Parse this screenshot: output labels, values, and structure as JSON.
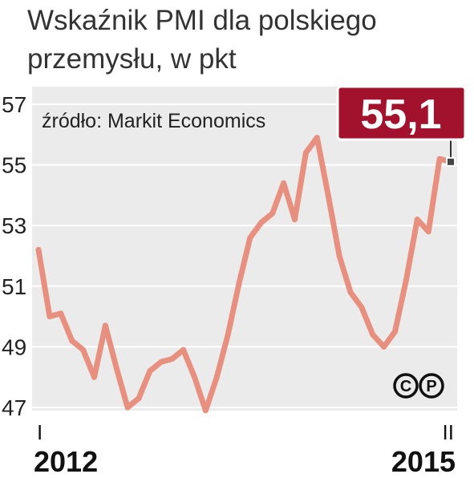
{
  "title": "Wskaźnik PMI dla polskiego przemysłu, w pkt",
  "source": "źródło: Markit Economics",
  "copyright": {
    "c": "C",
    "p": "P"
  },
  "colors": {
    "line": "#e8907f",
    "plot_bg": "#ebebeb",
    "callout": "#a3122d"
  },
  "callout": {
    "label": "55,1"
  },
  "chart_data": {
    "type": "line",
    "title": "Wskaźnik PMI dla polskiego przemysłu, w pkt",
    "ylim": [
      47,
      57
    ],
    "yticks": [
      47,
      49,
      51,
      53,
      55,
      57
    ],
    "grid": true,
    "x_labels": [
      {
        "index": 0,
        "month": "I",
        "year": "2012"
      },
      {
        "index": 37,
        "month": "II",
        "year": "2015"
      }
    ],
    "series": [
      {
        "values": [
          52.2,
          50.0,
          50.1,
          49.2,
          48.9,
          48.0,
          49.7,
          48.3,
          47.0,
          47.3,
          48.2,
          48.5,
          48.6,
          48.9,
          48.0,
          46.9,
          48.0,
          49.4,
          51.1,
          52.6,
          53.1,
          53.4,
          54.4,
          53.2,
          55.4,
          55.9,
          54.0,
          52.0,
          50.8,
          50.3,
          49.4,
          49.0,
          49.5,
          51.2,
          53.2,
          52.8,
          55.2,
          55.1
        ]
      }
    ]
  }
}
